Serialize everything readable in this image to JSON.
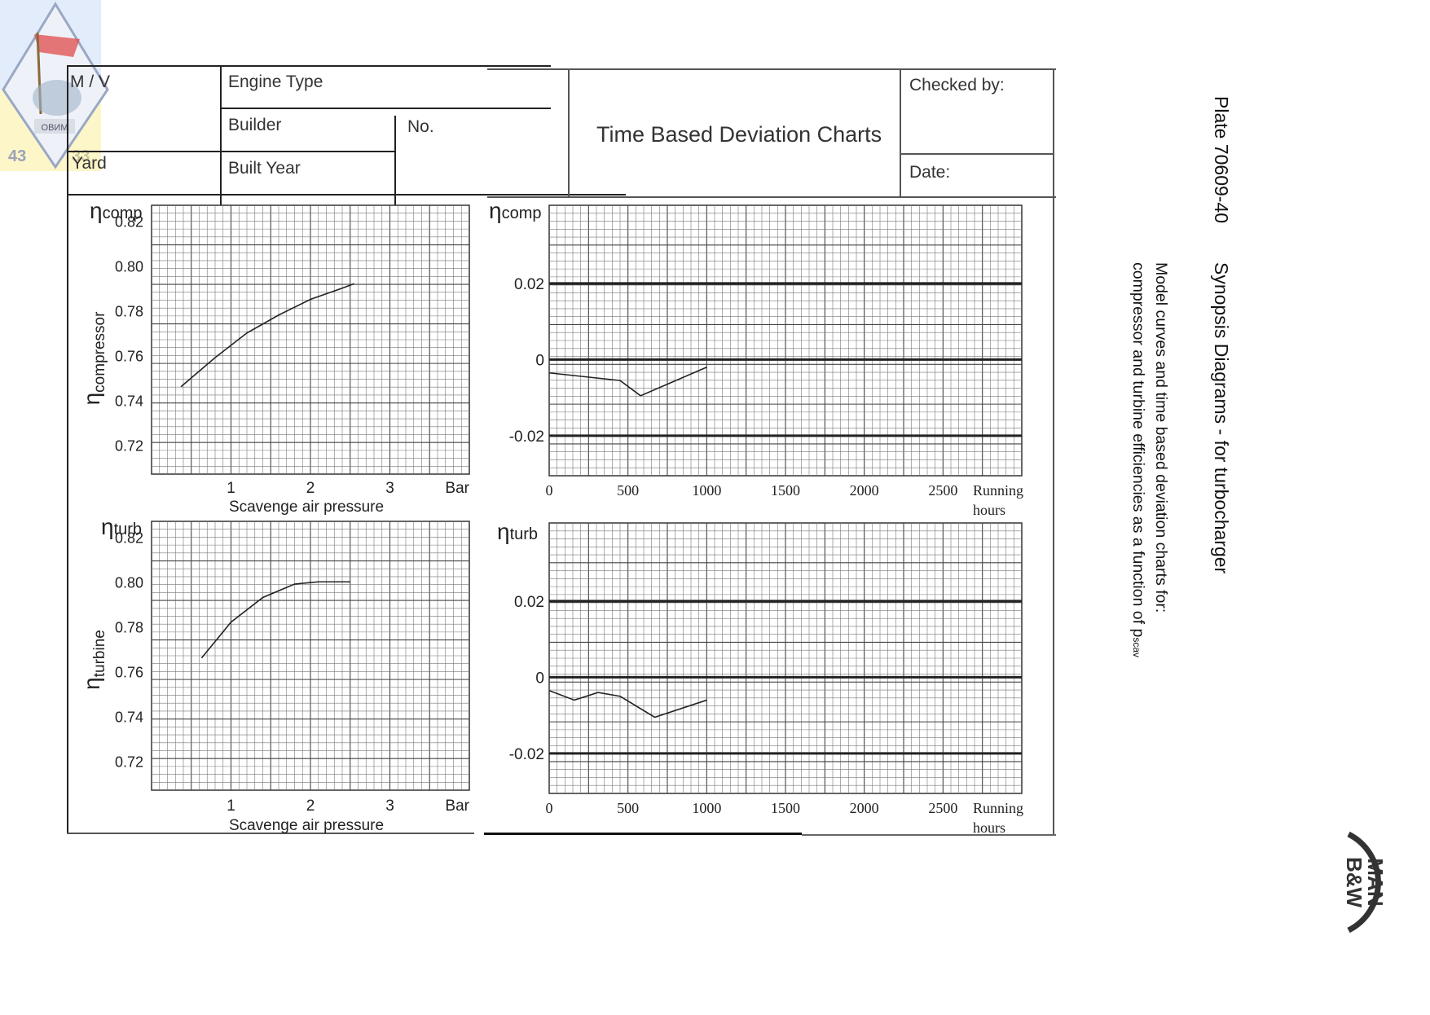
{
  "stamp": {
    "badge_text": "ОВИМ",
    "number_left": "43",
    "number_right": "33"
  },
  "header": {
    "mv_label": "M / V",
    "engine_type_label": "Engine Type",
    "builder_label": "Builder",
    "no_label": "No.",
    "yard_label": "Yard",
    "built_year_label": "Built Year",
    "title": "Time Based Deviation Charts",
    "checked_by_label": "Checked by:",
    "date_label": "Date:"
  },
  "side": {
    "plate": "Plate 70609-40",
    "heading": "Synopsis  Diagrams  -  for  turbocharger",
    "caption_line1": "Model curves and time based deviation charts for:",
    "caption_line2": "compressor  and  turbine  efficiencies  as  a function  of  p",
    "caption_sub": "scav"
  },
  "logo": {
    "text_top": "MAN",
    "text_bottom": "B&W"
  },
  "chart_data": [
    {
      "type": "line",
      "title": "",
      "corner_label": "ηcomp",
      "ylabel": "η compressor",
      "xlabel": "Scavenge air pressure",
      "x_unit": "Bar",
      "xlim": [
        0.0,
        4.0
      ],
      "ylim": [
        0.707,
        0.827
      ],
      "xticks": [
        "1",
        "2",
        "3"
      ],
      "yticks": [
        "0.82",
        "0.80",
        "0.78",
        "0.76",
        "0.74",
        "0.72"
      ],
      "series": [
        {
          "name": "model curve",
          "x": [
            0.37,
            0.8,
            1.2,
            1.6,
            2.0,
            2.4,
            2.55
          ],
          "y": [
            0.746,
            0.759,
            0.77,
            0.778,
            0.785,
            0.79,
            0.792
          ]
        }
      ]
    },
    {
      "type": "line",
      "title": "",
      "corner_label": "ηturb",
      "ylabel": "η turbine",
      "xlabel": "Scavenge air pressure",
      "x_unit": "Bar",
      "xlim": [
        0.0,
        4.0
      ],
      "ylim": [
        0.707,
        0.827
      ],
      "xticks": [
        "1",
        "2",
        "3"
      ],
      "yticks": [
        "0.82",
        "0.80",
        "0.78",
        "0.76",
        "0.74",
        "0.72"
      ],
      "series": [
        {
          "name": "model curve",
          "x": [
            0.63,
            1.0,
            1.4,
            1.8,
            2.1,
            2.4,
            2.5
          ],
          "y": [
            0.766,
            0.782,
            0.793,
            0.799,
            0.8,
            0.8,
            0.8
          ]
        }
      ]
    },
    {
      "type": "line",
      "title": "",
      "corner_label": "ηcomp",
      "ylabel": "",
      "xlabel": "Running hours",
      "xlim": [
        0,
        3000
      ],
      "ylim": [
        -0.0305,
        0.0405
      ],
      "xticks": [
        "0",
        "500",
        "1000",
        "1500",
        "2000",
        "2500"
      ],
      "yticks": [
        "0.02",
        "0",
        "-0.02"
      ],
      "series": [
        {
          "name": "deviation",
          "x": [
            0,
            450,
            580,
            1000
          ],
          "y": [
            -0.0035,
            -0.0055,
            -0.0095,
            -0.002
          ]
        }
      ]
    },
    {
      "type": "line",
      "title": "",
      "corner_label": "ηturb",
      "ylabel": "",
      "xlabel": "Running hours",
      "xlim": [
        0,
        3000
      ],
      "ylim": [
        -0.0305,
        0.0405
      ],
      "xticks": [
        "0",
        "500",
        "1000",
        "1500",
        "2000",
        "2500"
      ],
      "yticks": [
        "0.02",
        "0",
        "-0.02"
      ],
      "series": [
        {
          "name": "deviation",
          "x": [
            0,
            160,
            310,
            450,
            670,
            1000
          ],
          "y": [
            -0.0035,
            -0.006,
            -0.004,
            -0.005,
            -0.0105,
            -0.006
          ]
        }
      ]
    }
  ]
}
